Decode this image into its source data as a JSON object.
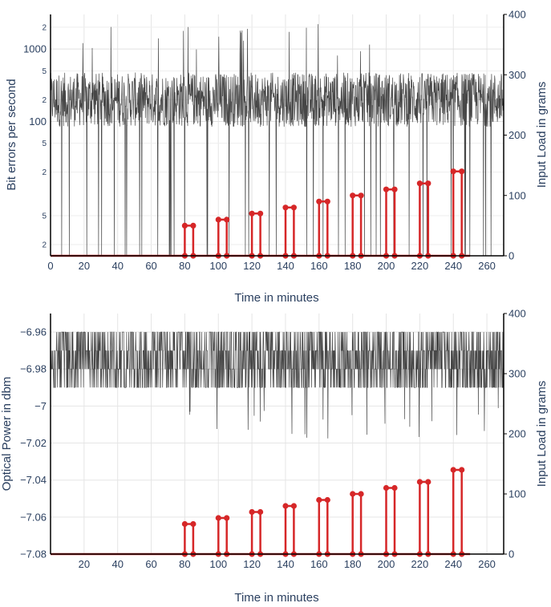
{
  "chart_data": [
    {
      "type": "line",
      "id": "top",
      "xlabel": "Time in minutes",
      "ylabel": "Bit errors per second",
      "y2label": "Input Load in grams",
      "xlim": [
        0,
        270
      ],
      "ylim_log": [
        1.4,
        3000
      ],
      "y2lim": [
        0,
        400
      ],
      "x_ticks": [
        0,
        20,
        40,
        60,
        80,
        100,
        120,
        140,
        160,
        180,
        200,
        220,
        240,
        260
      ],
      "y_major_ticks": [
        {
          "v": 100,
          "label": "100"
        },
        {
          "v": 1000,
          "label": "1000"
        }
      ],
      "y_minor_ticks": [
        {
          "v": 2,
          "label": "2"
        },
        {
          "v": 5,
          "label": "5"
        },
        {
          "v": 20,
          "label": "2"
        },
        {
          "v": 50,
          "label": "5"
        },
        {
          "v": 200,
          "label": "2"
        },
        {
          "v": 500,
          "label": "5"
        },
        {
          "v": 2000,
          "label": "2"
        }
      ],
      "y2_ticks": [
        0,
        100,
        200,
        300,
        400
      ],
      "noise_series": {
        "name": "Bit errors",
        "center": 200,
        "color": "#333333"
      },
      "load_series": {
        "name": "Input Load",
        "color": "#d62728",
        "steps": [
          {
            "x0": 80,
            "x1": 85,
            "v": 50
          },
          {
            "x0": 100,
            "x1": 105,
            "v": 60
          },
          {
            "x0": 120,
            "x1": 125,
            "v": 70
          },
          {
            "x0": 140,
            "x1": 145,
            "v": 80
          },
          {
            "x0": 160,
            "x1": 165,
            "v": 90
          },
          {
            "x0": 180,
            "x1": 185,
            "v": 100
          },
          {
            "x0": 200,
            "x1": 205,
            "v": 110
          },
          {
            "x0": 220,
            "x1": 225,
            "v": 120
          },
          {
            "x0": 240,
            "x1": 245,
            "v": 140
          }
        ]
      }
    },
    {
      "type": "line",
      "id": "bottom",
      "xlabel": "Time in minutes",
      "ylabel": "Optical Power in dbm",
      "y2label": "Input Load in grams",
      "xlim": [
        0,
        270
      ],
      "ylim": [
        -7.08,
        -6.95
      ],
      "y2lim": [
        0,
        400
      ],
      "x_ticks": [
        20,
        40,
        60,
        80,
        100,
        120,
        140,
        160,
        180,
        200,
        220,
        240,
        260
      ],
      "y_ticks": [
        {
          "v": -6.96,
          "label": "−6.96"
        },
        {
          "v": -6.98,
          "label": "−6.98"
        },
        {
          "v": -7.0,
          "label": "−7"
        },
        {
          "v": -7.02,
          "label": "−7.02"
        },
        {
          "v": -7.04,
          "label": "−7.04"
        },
        {
          "v": -7.06,
          "label": "−7.06"
        },
        {
          "v": -7.08,
          "label": "−7.08"
        }
      ],
      "y2_ticks": [
        0,
        100,
        200,
        300,
        400
      ],
      "noise_series": {
        "name": "Optical Power",
        "levels": [
          -6.96,
          -6.97,
          -6.98,
          -6.99
        ],
        "color": "#333333"
      },
      "load_series": {
        "name": "Input Load",
        "color": "#d62728",
        "steps": [
          {
            "x0": 80,
            "x1": 85,
            "v": 50
          },
          {
            "x0": 100,
            "x1": 105,
            "v": 60
          },
          {
            "x0": 120,
            "x1": 125,
            "v": 70
          },
          {
            "x0": 140,
            "x1": 145,
            "v": 80
          },
          {
            "x0": 160,
            "x1": 165,
            "v": 90
          },
          {
            "x0": 180,
            "x1": 185,
            "v": 100
          },
          {
            "x0": 200,
            "x1": 205,
            "v": 110
          },
          {
            "x0": 220,
            "x1": 225,
            "v": 120
          },
          {
            "x0": 240,
            "x1": 245,
            "v": 140
          }
        ]
      }
    }
  ]
}
